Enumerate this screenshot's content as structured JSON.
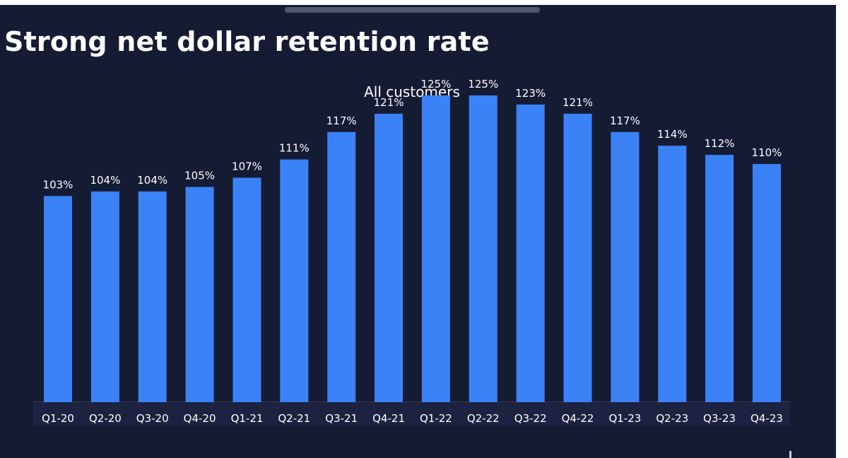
{
  "slide": {
    "title": "Strong net dollar retention rate"
  },
  "chart_data": {
    "type": "bar",
    "title": "All customers",
    "xlabel": "",
    "ylabel": "",
    "ylim": [
      0,
      125
    ],
    "grid": false,
    "legend": "none",
    "value_suffix": "%",
    "bar_color": "#3b82f6",
    "categories": [
      "Q1-20",
      "Q2-20",
      "Q3-20",
      "Q4-20",
      "Q1-21",
      "Q2-21",
      "Q3-21",
      "Q4-21",
      "Q1-22",
      "Q2-22",
      "Q3-22",
      "Q4-22",
      "Q1-23",
      "Q2-23",
      "Q3-23",
      "Q4-23"
    ],
    "series": [
      {
        "name": "All customers",
        "values": [
          103,
          104,
          104,
          105,
          107,
          111,
          117,
          121,
          125,
          125,
          123,
          121,
          117,
          114,
          112,
          110
        ],
        "labels": [
          "103%",
          "104%",
          "104%",
          "105%",
          "107%",
          "111%",
          "117%",
          "121%",
          "125%",
          "125%",
          "123%",
          "121%",
          "117%",
          "114%",
          "112%",
          "110%"
        ]
      }
    ]
  }
}
